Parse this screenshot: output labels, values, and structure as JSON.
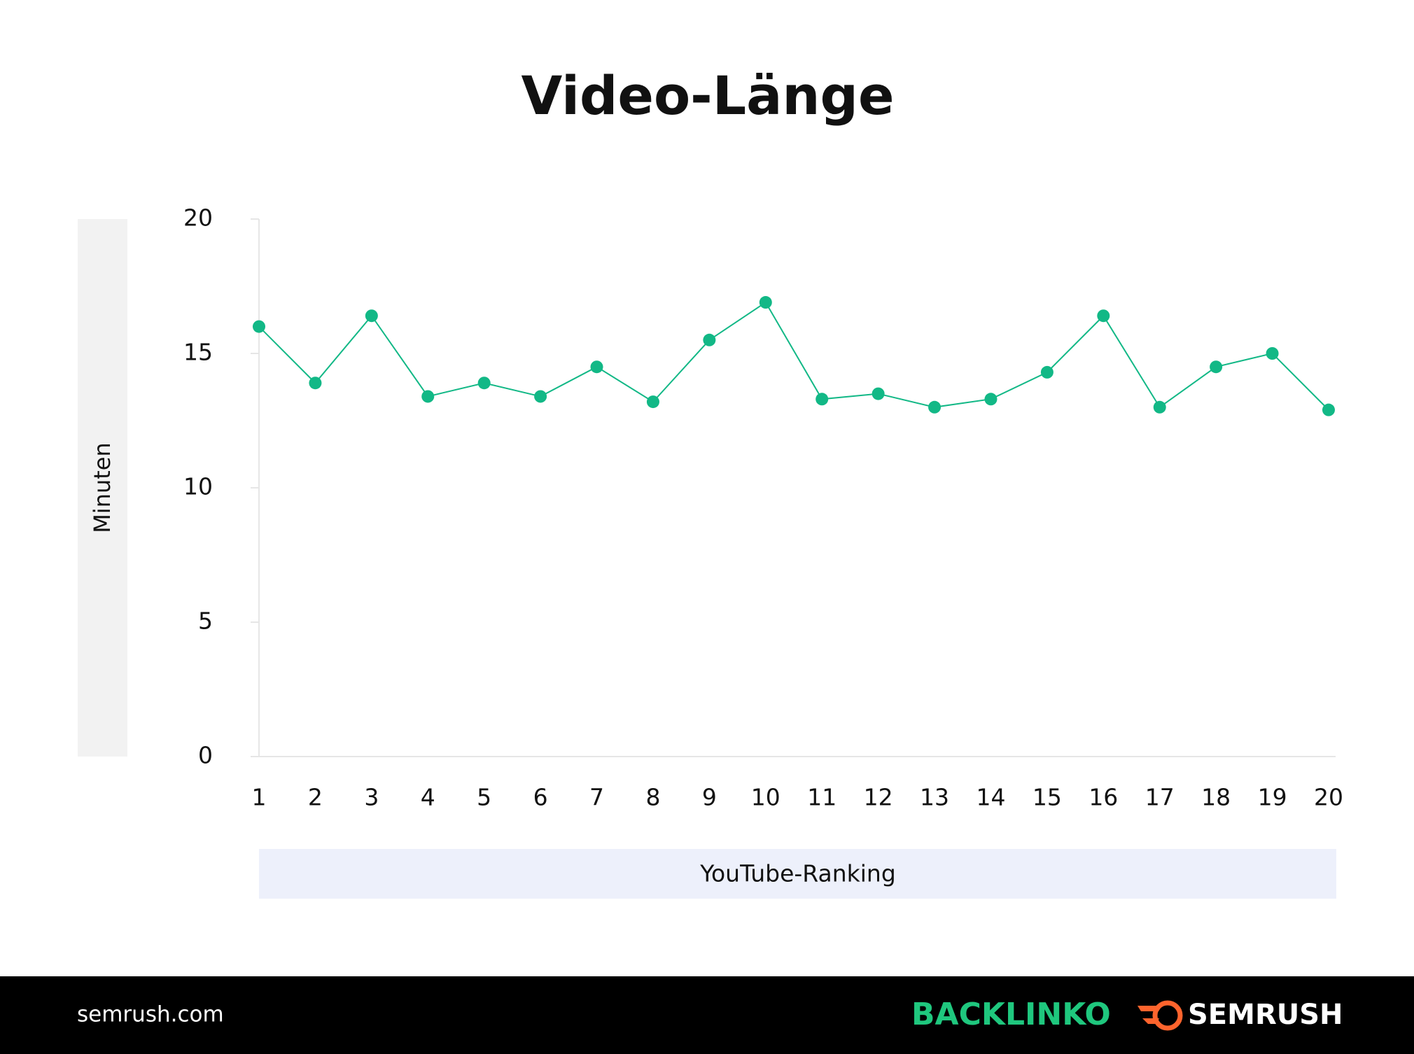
{
  "chart_data": {
    "type": "line",
    "title": "Video-Länge",
    "x": [
      1,
      2,
      3,
      4,
      5,
      6,
      7,
      8,
      9,
      10,
      11,
      12,
      13,
      14,
      15,
      16,
      17,
      18,
      19,
      20
    ],
    "values": [
      16.0,
      13.9,
      16.4,
      13.4,
      13.9,
      13.4,
      14.5,
      13.2,
      15.5,
      16.9,
      13.3,
      13.5,
      13.0,
      13.3,
      14.3,
      16.4,
      13.0,
      14.5,
      15.0,
      12.9
    ],
    "color": "#12b886",
    "xlim": [
      1,
      20
    ],
    "xticks": [
      1,
      2,
      3,
      4,
      5,
      6,
      7,
      8,
      9,
      10,
      11,
      12,
      13,
      14,
      15,
      16,
      17,
      18,
      19,
      20
    ],
    "ylim": [
      0,
      20
    ],
    "yticks": [
      0,
      5,
      10,
      15,
      20
    ],
    "x_label": "YouTube-Ranking",
    "y_label": "Minuten"
  },
  "footer": {
    "source": "semrush.com",
    "brand_1": "BACKLINKO",
    "brand_2": "SEMRUSH"
  }
}
